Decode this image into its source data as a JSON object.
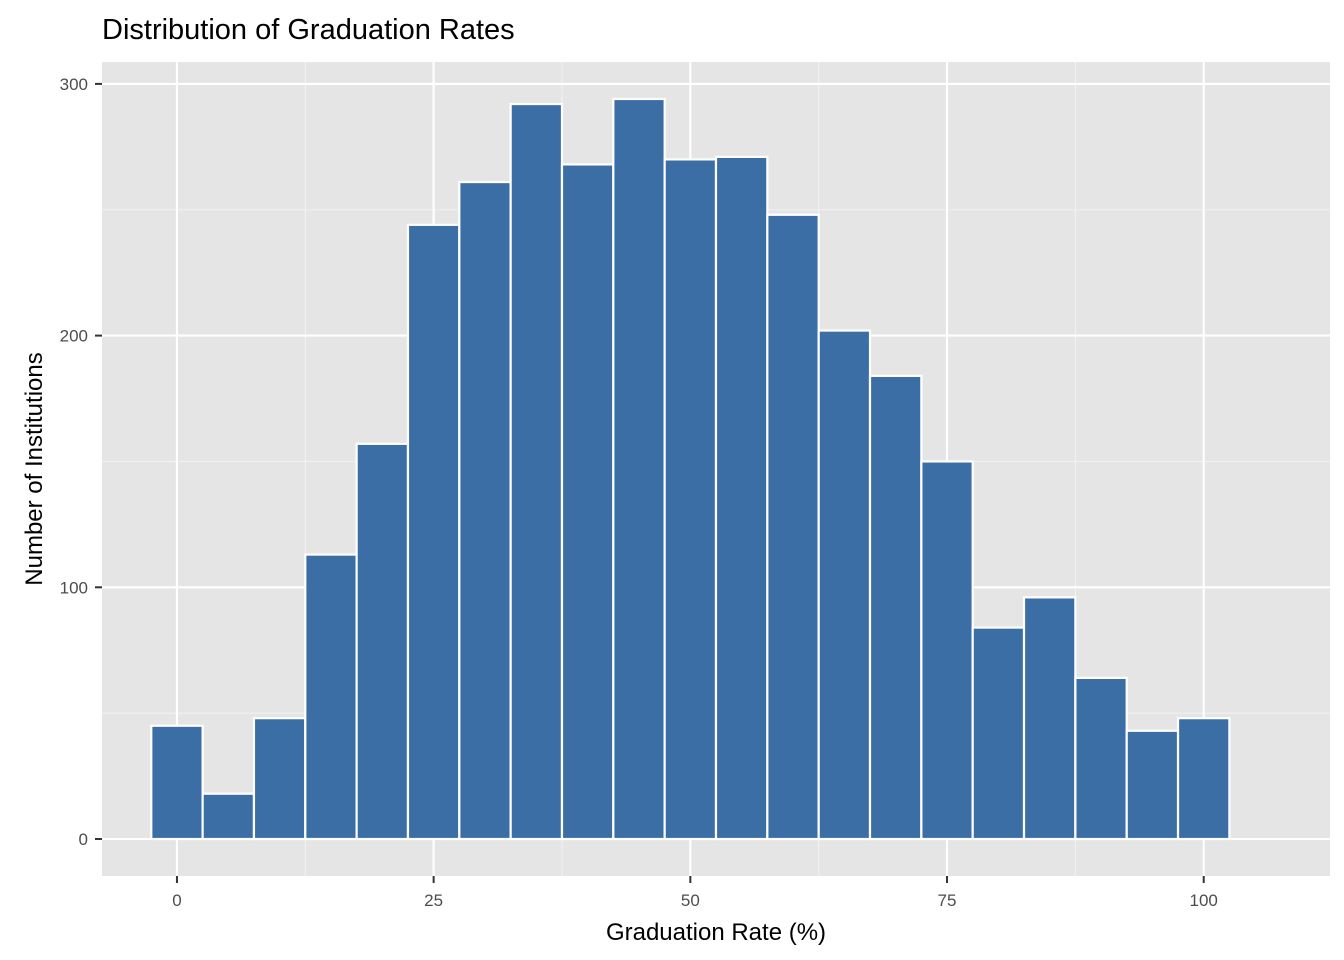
{
  "chart_data": {
    "type": "bar",
    "subtype": "histogram",
    "title": "Distribution of Graduation Rates",
    "xlabel": "Graduation Rate (%)",
    "ylabel": "Number of Institutions",
    "bin_width": 5,
    "bins": [
      {
        "center": 0,
        "count": 45
      },
      {
        "center": 5,
        "count": 18
      },
      {
        "center": 10,
        "count": 48
      },
      {
        "center": 15,
        "count": 113
      },
      {
        "center": 20,
        "count": 157
      },
      {
        "center": 25,
        "count": 244
      },
      {
        "center": 30,
        "count": 261
      },
      {
        "center": 35,
        "count": 292
      },
      {
        "center": 40,
        "count": 268
      },
      {
        "center": 45,
        "count": 294
      },
      {
        "center": 50,
        "count": 270
      },
      {
        "center": 55,
        "count": 271
      },
      {
        "center": 60,
        "count": 248
      },
      {
        "center": 65,
        "count": 202
      },
      {
        "center": 70,
        "count": 184
      },
      {
        "center": 75,
        "count": 150
      },
      {
        "center": 80,
        "count": 84
      },
      {
        "center": 85,
        "count": 96
      },
      {
        "center": 90,
        "count": 64
      },
      {
        "center": 95,
        "count": 43
      },
      {
        "center": 100,
        "count": 48
      }
    ],
    "xlim": [
      -7.3,
      112.3
    ],
    "ylim": [
      -14.7,
      308.7
    ],
    "x_ticks": [
      "0",
      "25",
      "50",
      "75",
      "100"
    ],
    "y_ticks": [
      "0",
      "100",
      "200",
      "300"
    ],
    "grid": true,
    "legend": "none",
    "colors": {
      "bar_fill": "#3A6EA5",
      "bar_stroke": "#FFFFFF",
      "panel_background": "#E5E5E5",
      "grid_major": "#FFFFFF",
      "grid_minor": "#F2F2F2"
    }
  }
}
